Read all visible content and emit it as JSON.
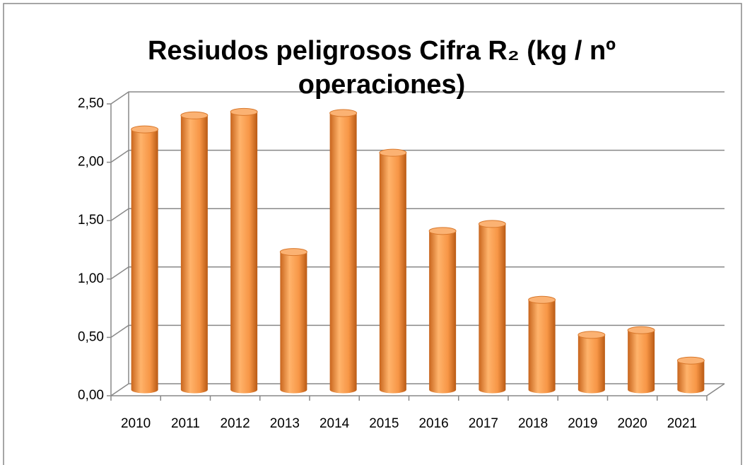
{
  "chart_data": {
    "type": "bar",
    "title": "Resiudos peligrosos Cifra R₂ (kg / nº operaciones)",
    "categories": [
      "2010",
      "2011",
      "2012",
      "2013",
      "2014",
      "2015",
      "2016",
      "2017",
      "2018",
      "2019",
      "2020",
      "2021"
    ],
    "values": [
      2.23,
      2.35,
      2.38,
      1.18,
      2.37,
      2.03,
      1.36,
      1.42,
      0.77,
      0.47,
      0.51,
      0.25
    ],
    "color": "#f79646",
    "ylim": [
      0,
      2.5
    ],
    "yticks": [
      {
        "value": 0,
        "label": "0,00"
      },
      {
        "value": 0.5,
        "label": "0,50"
      },
      {
        "value": 1,
        "label": "1,00"
      },
      {
        "value": 1.5,
        "label": "1,50"
      },
      {
        "value": 2,
        "label": "2,00"
      },
      {
        "value": 2.5,
        "label": "2,50"
      }
    ],
    "grid": true
  }
}
